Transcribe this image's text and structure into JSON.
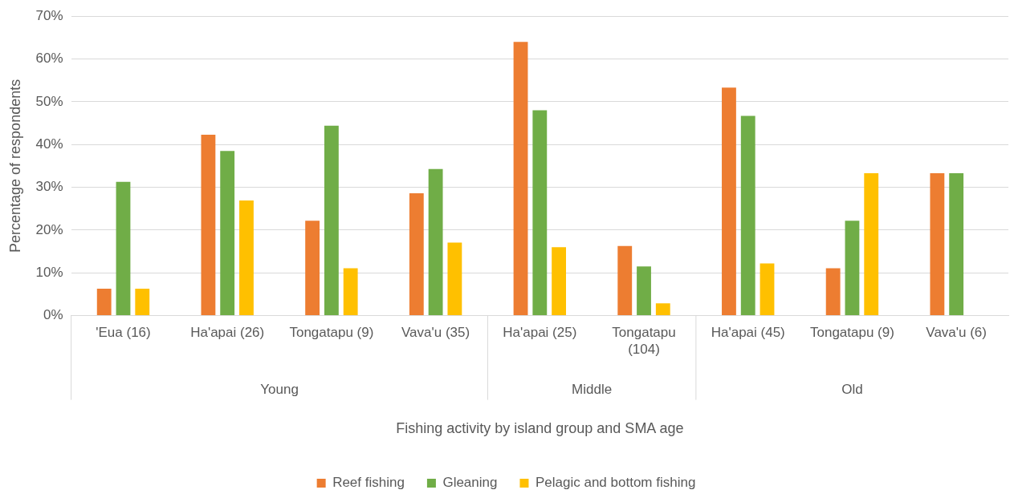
{
  "chart_data": {
    "type": "bar",
    "xlabel": "Fishing activity by island group and SMA age",
    "ylabel": "Percentage of respondents",
    "categories": [
      "'Eua (16)",
      "Ha'apai (26)",
      "Tongatapu (9)",
      "Vava'u (35)",
      "Ha'apai (25)",
      "Tongatapu (104)",
      "Ha'apai (45)",
      "Tongatapu (9)",
      "Vava'u (6)"
    ],
    "series": [
      {
        "name": "Reef fishing",
        "color": "#ed7d31",
        "values": [
          6.3,
          42.3,
          22.2,
          28.6,
          64,
          16.3,
          53.3,
          11.1,
          33.3
        ]
      },
      {
        "name": "Gleaning",
        "color": "#70ad47",
        "values": [
          31.3,
          38.5,
          44.4,
          34.3,
          48,
          11.5,
          46.7,
          22.2,
          33.3
        ]
      },
      {
        "name": "Pelagic and bottom fishing",
        "color": "#ffc000",
        "values": [
          6.3,
          26.9,
          11.1,
          17.1,
          16,
          2.9,
          12.2,
          33.3,
          0
        ]
      }
    ],
    "annotations": [
      "Young",
      "Middle",
      "Old"
    ],
    "ylim": [
      0,
      70
    ],
    "yticks": [
      {
        "value": 0,
        "label": "0%"
      },
      {
        "value": 10,
        "label": "10%"
      },
      {
        "value": 20,
        "label": "20%"
      },
      {
        "value": 30,
        "label": "30%"
      },
      {
        "value": 40,
        "label": "40%"
      },
      {
        "value": 50,
        "label": "50%"
      },
      {
        "value": 60,
        "label": "60%"
      },
      {
        "value": 70,
        "label": "70%"
      }
    ],
    "grid": "y",
    "legend": "bottom"
  }
}
